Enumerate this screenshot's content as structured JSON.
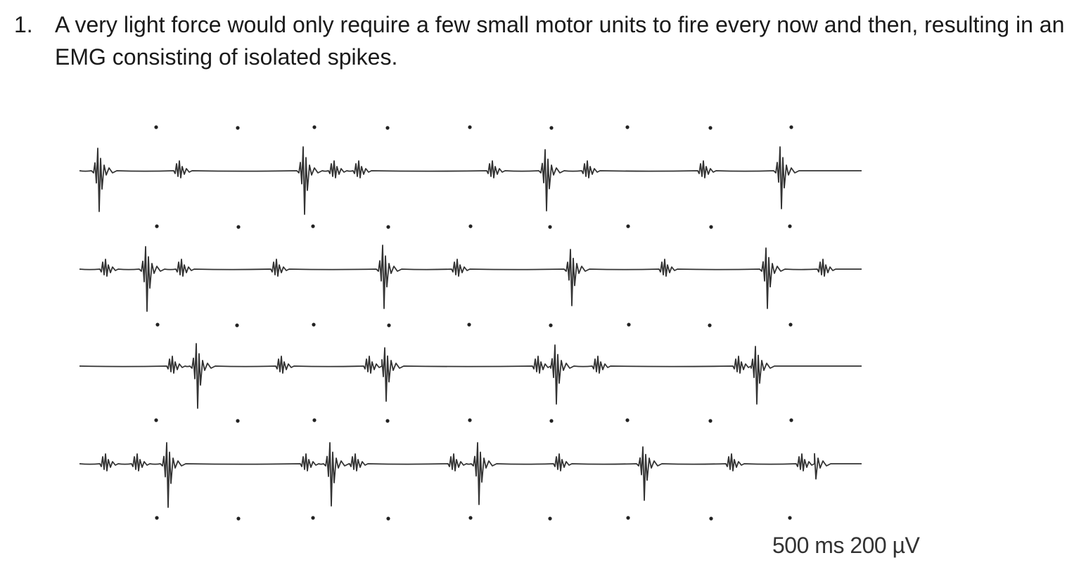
{
  "list": {
    "number": "1.",
    "text": "A very light force would only require a few small motor units to fire every now and then, resulting in an EMG consisting of isolated spikes."
  },
  "figure": {
    "scale_label": "500 ms 200 µV",
    "trace_color": "#333333",
    "dot_color": "#222222",
    "trace_count": 4
  }
}
